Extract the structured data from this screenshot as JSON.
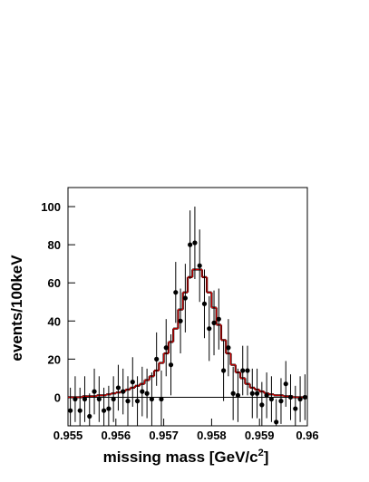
{
  "chart_data": {
    "type": "histfit",
    "xlabel": "missing mass [GeV/c",
    "xlabel_sup": "2",
    "xlabel_end": "]",
    "ylabel": "events/100keV",
    "xlim": [
      0.955,
      0.96
    ],
    "xticks": [
      0.955,
      0.956,
      0.957,
      0.958,
      0.959,
      0.96
    ],
    "ylim": [
      -15,
      110
    ],
    "yticks": [
      0,
      20,
      40,
      60,
      80,
      100
    ],
    "data": {
      "color": "#000000",
      "x": [
        0.95505,
        0.95515,
        0.95525,
        0.95535,
        0.95545,
        0.95555,
        0.95565,
        0.95575,
        0.95585,
        0.95595,
        0.95605,
        0.95615,
        0.95625,
        0.95635,
        0.95645,
        0.95655,
        0.95665,
        0.95675,
        0.95685,
        0.95695,
        0.95705,
        0.95715,
        0.95725,
        0.95735,
        0.95745,
        0.95755,
        0.95765,
        0.95775,
        0.95785,
        0.95795,
        0.95805,
        0.95815,
        0.95825,
        0.95835,
        0.95845,
        0.95855,
        0.95865,
        0.95875,
        0.95885,
        0.95895,
        0.95905,
        0.95915,
        0.95925,
        0.95935,
        0.95945,
        0.95955,
        0.95965,
        0.95975,
        0.95985,
        0.95995
      ],
      "values": [
        -7,
        -1,
        -7,
        -1,
        -10,
        3,
        -1,
        -7,
        -6,
        -1,
        5,
        3,
        -2,
        8,
        -2,
        3,
        2,
        -1,
        20,
        -1,
        26,
        17,
        55,
        40,
        52,
        80,
        81,
        69,
        49,
        36,
        39,
        41,
        14,
        26,
        2,
        1,
        14,
        14,
        2,
        2,
        -4,
        1,
        -1,
        -13,
        -2,
        7,
        0,
        -6,
        -1,
        0
      ],
      "errors": [
        12,
        12,
        12,
        12,
        12,
        12,
        12,
        12,
        12,
        12,
        12,
        12,
        13,
        13,
        13,
        13,
        13,
        14,
        14,
        15,
        15,
        16,
        16,
        17,
        18,
        18,
        19,
        19,
        18,
        17,
        17,
        16,
        16,
        15,
        14,
        14,
        13,
        13,
        13,
        13,
        12,
        12,
        12,
        12,
        12,
        12,
        12,
        12,
        12,
        12
      ]
    },
    "model": {
      "color": "#000000",
      "fit_color": "#cc0000",
      "values": [
        0,
        0,
        0,
        0.5,
        0.5,
        0.5,
        1,
        1,
        1.5,
        2,
        2.5,
        3,
        4,
        5,
        6,
        7,
        9,
        11,
        14,
        18,
        23,
        29,
        36,
        46,
        55,
        63,
        67,
        67,
        63,
        55,
        47,
        38,
        30,
        23,
        17,
        13,
        10,
        7,
        5,
        4,
        3,
        2,
        1.5,
        1,
        1,
        0.5,
        0.5,
        0,
        0,
        0
      ]
    }
  }
}
